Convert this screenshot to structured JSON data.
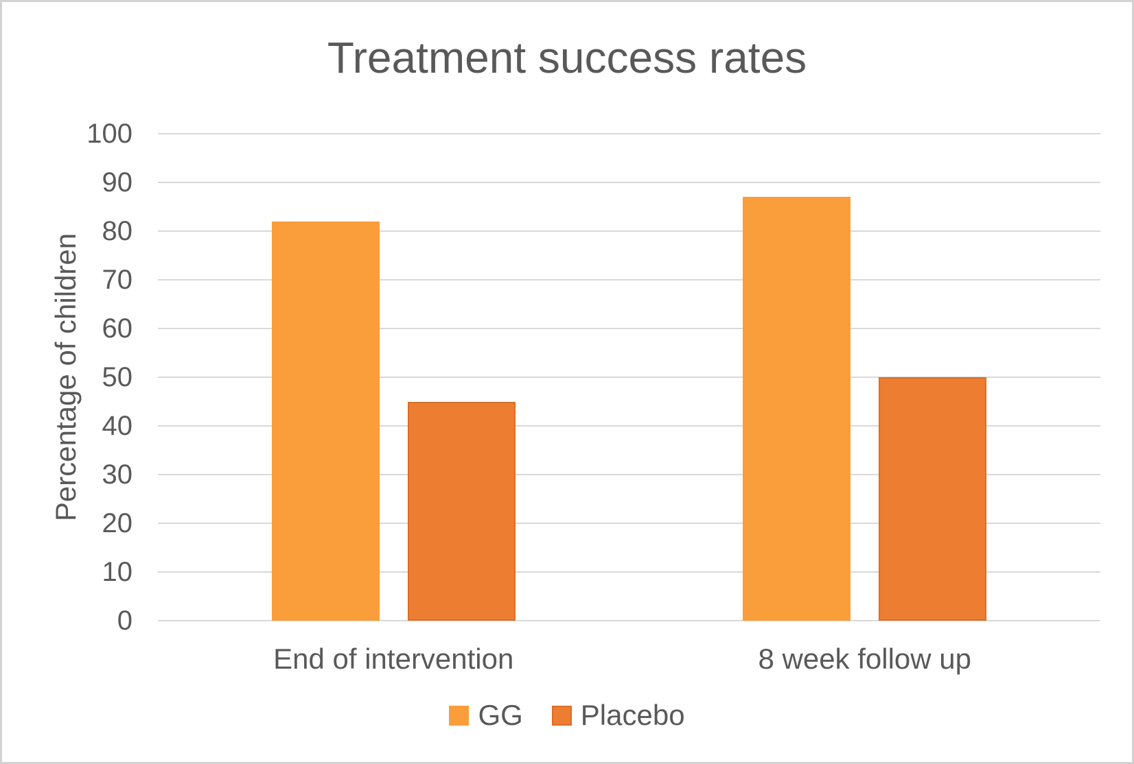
{
  "chart_data": {
    "type": "bar",
    "title": "Treatment success rates",
    "ylabel": "Percentage of children",
    "xlabel": "",
    "categories": [
      "End of intervention",
      "8 week follow up"
    ],
    "series": [
      {
        "name": "GG",
        "values": [
          82,
          87
        ],
        "color": "#FA9D3B",
        "border_color": null
      },
      {
        "name": "Placebo",
        "values": [
          45,
          50
        ],
        "color": "#ED7D31",
        "border_color": "#D86F28"
      }
    ],
    "ylim": [
      0,
      100
    ],
    "ytick_step": 10,
    "yticks": [
      0,
      10,
      20,
      30,
      40,
      50,
      60,
      70,
      80,
      90,
      100
    ],
    "grid": true,
    "legend_position": "bottom",
    "colors": {
      "text": "#595959",
      "gridline": "#D9D9D9",
      "frame_border": "#D2D2D2",
      "background": "#FFFFFF"
    }
  }
}
